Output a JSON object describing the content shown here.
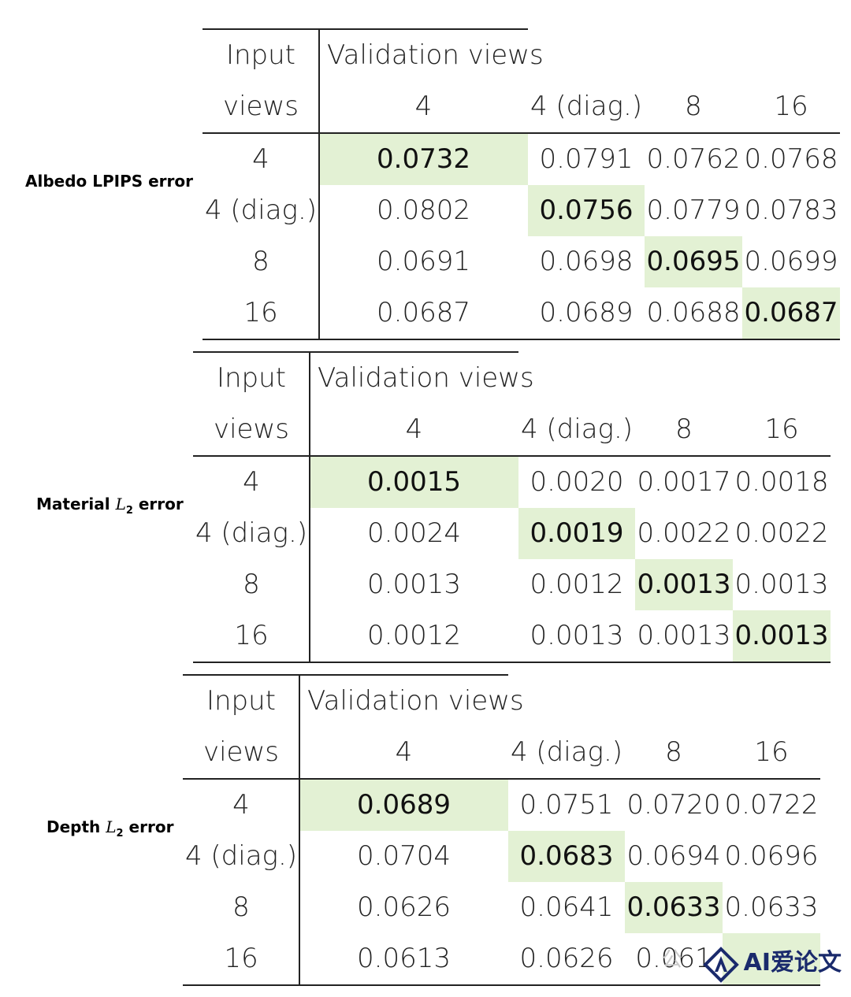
{
  "tables": [
    {
      "metric_label": "Albedo LPIPS error",
      "metric_kind": "plain",
      "header": {
        "input_line1": "Input",
        "input_line2": "views",
        "validation_label": "Validation views",
        "columns": [
          "4",
          "4 (diag.)",
          "8",
          "16"
        ]
      },
      "rows": [
        {
          "label": "4",
          "values": [
            "0.0732",
            "0.0791",
            "0.0762",
            "0.0768"
          ]
        },
        {
          "label": "4 (diag.)",
          "values": [
            "0.0802",
            "0.0756",
            "0.0779",
            "0.0783"
          ]
        },
        {
          "label": "8",
          "values": [
            "0.0691",
            "0.0698",
            "0.0695",
            "0.0699"
          ]
        },
        {
          "label": "16",
          "values": [
            "0.0687",
            "0.0689",
            "0.0688",
            "0.0687"
          ]
        }
      ],
      "highlight_color": "#e3f1d4"
    },
    {
      "metric_label_prefix": "Material ",
      "metric_symbol": "L",
      "metric_subscript": "2",
      "metric_label_suffix": " error",
      "metric_kind": "math",
      "header": {
        "input_line1": "Input",
        "input_line2": "views",
        "validation_label": "Validation views",
        "columns": [
          "4",
          "4 (diag.)",
          "8",
          "16"
        ]
      },
      "rows": [
        {
          "label": "4",
          "values": [
            "0.0015",
            "0.0020",
            "0.0017",
            "0.0018"
          ]
        },
        {
          "label": "4 (diag.)",
          "values": [
            "0.0024",
            "0.0019",
            "0.0022",
            "0.0022"
          ]
        },
        {
          "label": "8",
          "values": [
            "0.0013",
            "0.0012",
            "0.0013",
            "0.0013"
          ]
        },
        {
          "label": "16",
          "values": [
            "0.0012",
            "0.0013",
            "0.0013",
            "0.0013"
          ]
        }
      ],
      "highlight_color": "#e3f1d4"
    },
    {
      "metric_label_prefix": "Depth ",
      "metric_symbol": "L",
      "metric_subscript": "2",
      "metric_label_suffix": " error",
      "metric_kind": "math",
      "header": {
        "input_line1": "Input",
        "input_line2": "views",
        "validation_label": "Validation views",
        "columns": [
          "4",
          "4 (diag.)",
          "8",
          "16"
        ]
      },
      "rows": [
        {
          "label": "4",
          "values": [
            "0.0689",
            "0.0751",
            "0.0720",
            "0.0722"
          ]
        },
        {
          "label": "4 (diag.)",
          "values": [
            "0.0704",
            "0.0683",
            "0.0694",
            "0.0696"
          ]
        },
        {
          "label": "8",
          "values": [
            "0.0626",
            "0.0641",
            "0.0633",
            "0.0633"
          ]
        },
        {
          "label": "16",
          "values": [
            "0.0613",
            "0.0626",
            "0.061",
            ""
          ]
        }
      ],
      "highlight_color": "#e3f1d4"
    }
  ],
  "watermark": {
    "text": "AI爱论文",
    "ghost_text": "公",
    "logo_icon": "diamond-a-logo-icon",
    "color": "#1a2a6c"
  }
}
